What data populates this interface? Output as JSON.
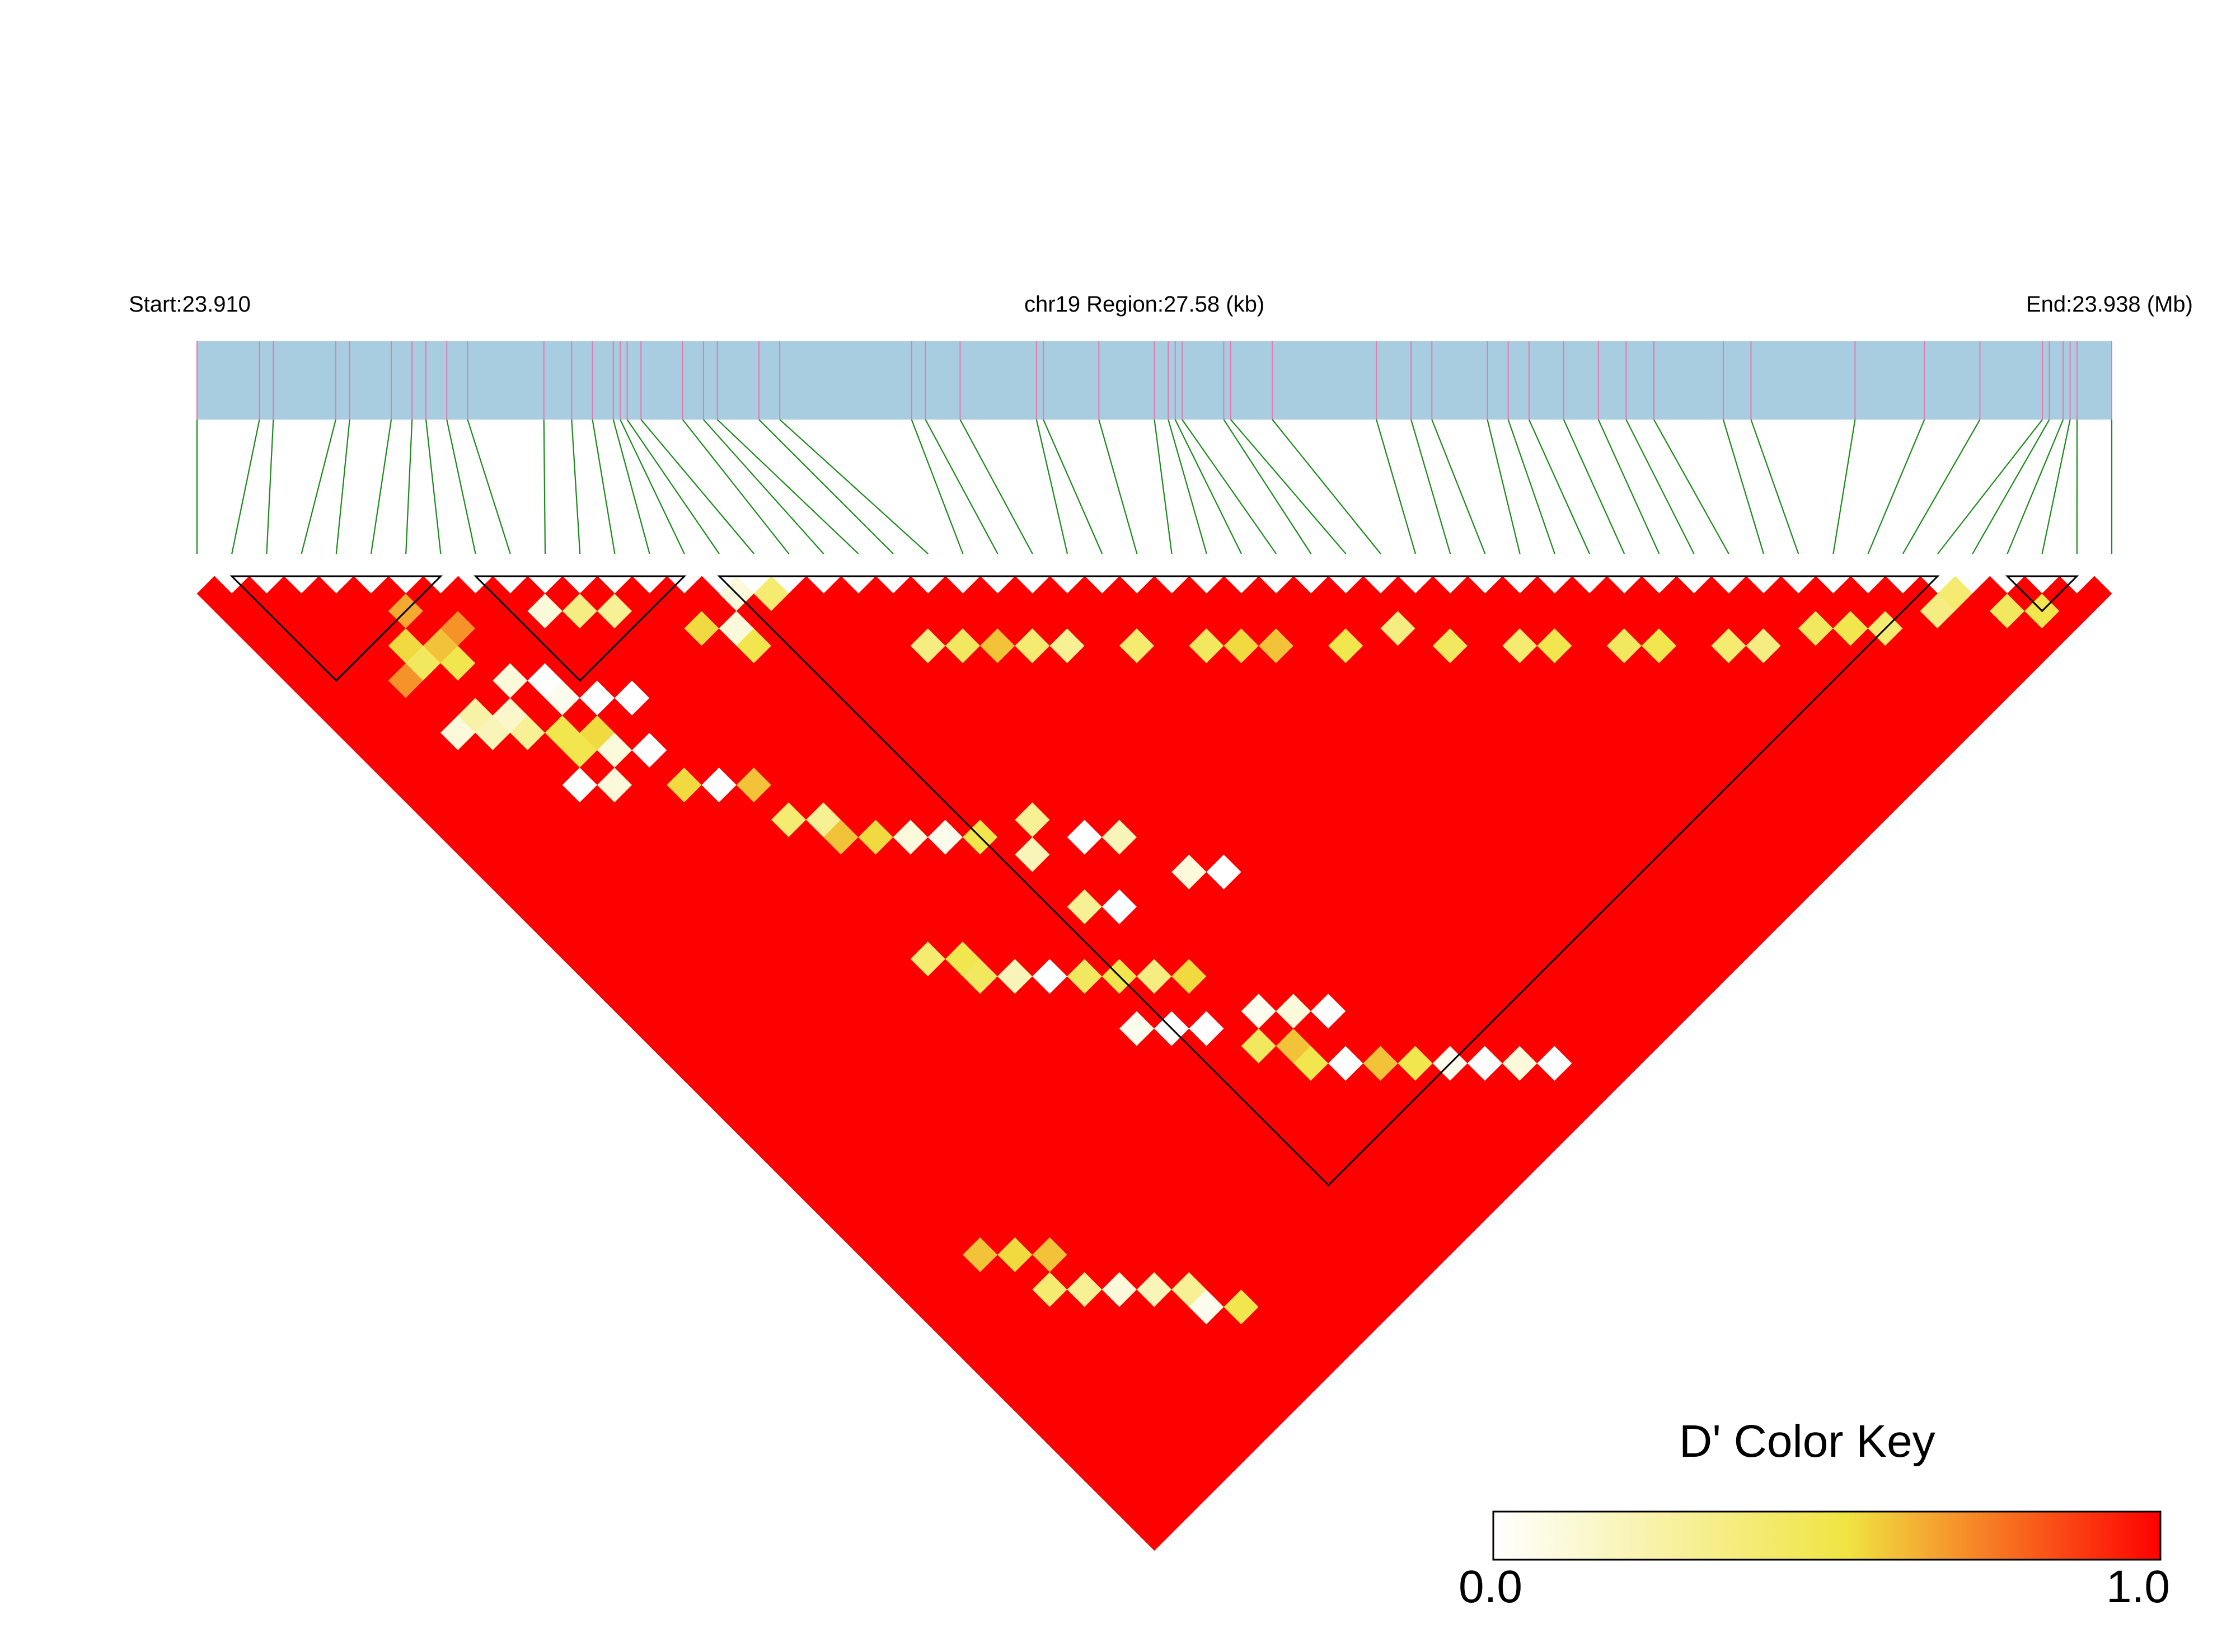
{
  "header": {
    "start": "Start:23.910",
    "region": "chr19 Region:27.58 (kb)",
    "end": "End:23.938 (Mb)"
  },
  "color_key": {
    "title": "D' Color Key",
    "min_label": "0.0",
    "max_label": "1.0",
    "low_color": "#ffffff",
    "mid_color": "#f0e442",
    "high_color": "#ff0000"
  },
  "chart_data": {
    "type": "heatmap",
    "chromosome": "chr19",
    "region_start_mb": 23.91,
    "region_end_mb": 23.938,
    "region_length_kb": 27.58,
    "n_snps": 56,
    "snp_positions_mb": [
      23.91,
      23.9109,
      23.9111,
      23.912,
      23.9122,
      23.9128,
      23.9131,
      23.9133,
      23.9136,
      23.9139,
      23.915,
      23.9154,
      23.9157,
      23.916,
      23.9161,
      23.9162,
      23.9164,
      23.917,
      23.9173,
      23.9175,
      23.9181,
      23.9184,
      23.9203,
      23.9205,
      23.921,
      23.9221,
      23.9222,
      23.923,
      23.9238,
      23.924,
      23.9241,
      23.9242,
      23.9248,
      23.9249,
      23.9255,
      23.927,
      23.9275,
      23.9278,
      23.9286,
      23.9289,
      23.9292,
      23.9297,
      23.9302,
      23.9306,
      23.931,
      23.932,
      23.9324,
      23.9339,
      23.9349,
      23.9357,
      23.9366,
      23.9367,
      23.9369,
      23.937,
      23.9371,
      23.9376
    ],
    "metric": "D'",
    "value_range": [
      0,
      1
    ],
    "base_value": 1.0,
    "ld_blocks": [
      [
        1,
        7
      ],
      [
        8,
        14
      ],
      [
        15,
        50
      ],
      [
        52,
        54
      ]
    ],
    "low_cells": [
      [
        9,
        11,
        0.1
      ],
      [
        10,
        12,
        0.35
      ],
      [
        11,
        13,
        0.3
      ],
      [
        5,
        7,
        0.65
      ],
      [
        6,
        9,
        0.7
      ],
      [
        15,
        16,
        0.1
      ],
      [
        16,
        17,
        0.4
      ],
      [
        14,
        17,
        0.1
      ],
      [
        13,
        16,
        0.55
      ],
      [
        14,
        18,
        0.5
      ],
      [
        19,
        23,
        0.35
      ],
      [
        20,
        24,
        0.45
      ],
      [
        21,
        25,
        0.6
      ],
      [
        22,
        26,
        0.4
      ],
      [
        23,
        27,
        0.3
      ],
      [
        25,
        29,
        0.4
      ],
      [
        27,
        31,
        0.45
      ],
      [
        28,
        32,
        0.55
      ],
      [
        29,
        33,
        0.6
      ],
      [
        31,
        35,
        0.5
      ],
      [
        33,
        36,
        0.35
      ],
      [
        34,
        38,
        0.45
      ],
      [
        36,
        40,
        0.4
      ],
      [
        37,
        41,
        0.5
      ],
      [
        39,
        43,
        0.45
      ],
      [
        40,
        44,
        0.5
      ],
      [
        42,
        46,
        0.4
      ],
      [
        43,
        47,
        0.35
      ],
      [
        45,
        48,
        0.45
      ],
      [
        46,
        49,
        0.5
      ],
      [
        47,
        50,
        0.4
      ],
      [
        49,
        51,
        0.35
      ],
      [
        50,
        51,
        0.4
      ],
      [
        51,
        53,
        0.45
      ],
      [
        52,
        54,
        0.5
      ],
      [
        4,
        8,
        0.55
      ],
      [
        4,
        9,
        0.45
      ],
      [
        5,
        9,
        0.6
      ],
      [
        5,
        10,
        0.5
      ],
      [
        3,
        9,
        0.7
      ],
      [
        6,
        12,
        0.1
      ],
      [
        7,
        13,
        0.0
      ],
      [
        7,
        14,
        0.05
      ],
      [
        8,
        15,
        0.0
      ],
      [
        9,
        16,
        0.0
      ],
      [
        3,
        12,
        0.1
      ],
      [
        4,
        12,
        0.25
      ],
      [
        4,
        13,
        0.2
      ],
      [
        5,
        13,
        0.15
      ],
      [
        5,
        14,
        0.3
      ],
      [
        6,
        15,
        0.5
      ],
      [
        7,
        16,
        0.55
      ],
      [
        6,
        16,
        0.5
      ],
      [
        7,
        17,
        0.1
      ],
      [
        8,
        18,
        0.0
      ],
      [
        5,
        17,
        0.0
      ],
      [
        6,
        18,
        0.1
      ],
      [
        8,
        20,
        0.55
      ],
      [
        9,
        21,
        0.0
      ],
      [
        10,
        22,
        0.6
      ],
      [
        10,
        24,
        0.4
      ],
      [
        11,
        25,
        0.3
      ],
      [
        11,
        26,
        0.6
      ],
      [
        12,
        27,
        0.55
      ],
      [
        13,
        28,
        0.1
      ],
      [
        14,
        29,
        0.05
      ],
      [
        15,
        30,
        0.5
      ],
      [
        17,
        31,
        0.3
      ],
      [
        16,
        32,
        0.2
      ],
      [
        18,
        33,
        0.0
      ],
      [
        19,
        34,
        0.2
      ],
      [
        16,
        35,
        0.3
      ],
      [
        17,
        36,
        0.0
      ],
      [
        20,
        37,
        0.1
      ],
      [
        21,
        38,
        0.0
      ],
      [
        10,
        32,
        0.4
      ],
      [
        11,
        33,
        0.5
      ],
      [
        11,
        34,
        0.45
      ],
      [
        12,
        35,
        0.2
      ],
      [
        13,
        36,
        0.0
      ],
      [
        14,
        37,
        0.45
      ],
      [
        15,
        38,
        0.5
      ],
      [
        16,
        39,
        0.35
      ],
      [
        17,
        40,
        0.55
      ],
      [
        14,
        40,
        0.05
      ],
      [
        15,
        41,
        0.0
      ],
      [
        16,
        42,
        0.0
      ],
      [
        18,
        43,
        0.05
      ],
      [
        19,
        44,
        0.1
      ],
      [
        20,
        45,
        0.0
      ],
      [
        17,
        44,
        0.45
      ],
      [
        18,
        45,
        0.6
      ],
      [
        18,
        46,
        0.5
      ],
      [
        19,
        47,
        0.0
      ],
      [
        20,
        48,
        0.6
      ],
      [
        21,
        49,
        0.5
      ],
      [
        22,
        50,
        0.05
      ],
      [
        23,
        51,
        0.0
      ],
      [
        24,
        52,
        0.1
      ],
      [
        25,
        53,
        0.0
      ],
      [
        3,
        42,
        0.6
      ],
      [
        4,
        43,
        0.55
      ],
      [
        5,
        44,
        0.6
      ],
      [
        4,
        45,
        0.4
      ],
      [
        5,
        46,
        0.3
      ],
      [
        6,
        47,
        0.1
      ],
      [
        7,
        48,
        0.2
      ],
      [
        8,
        49,
        0.3
      ],
      [
        8,
        50,
        0.05
      ],
      [
        9,
        51,
        0.5
      ]
    ]
  }
}
